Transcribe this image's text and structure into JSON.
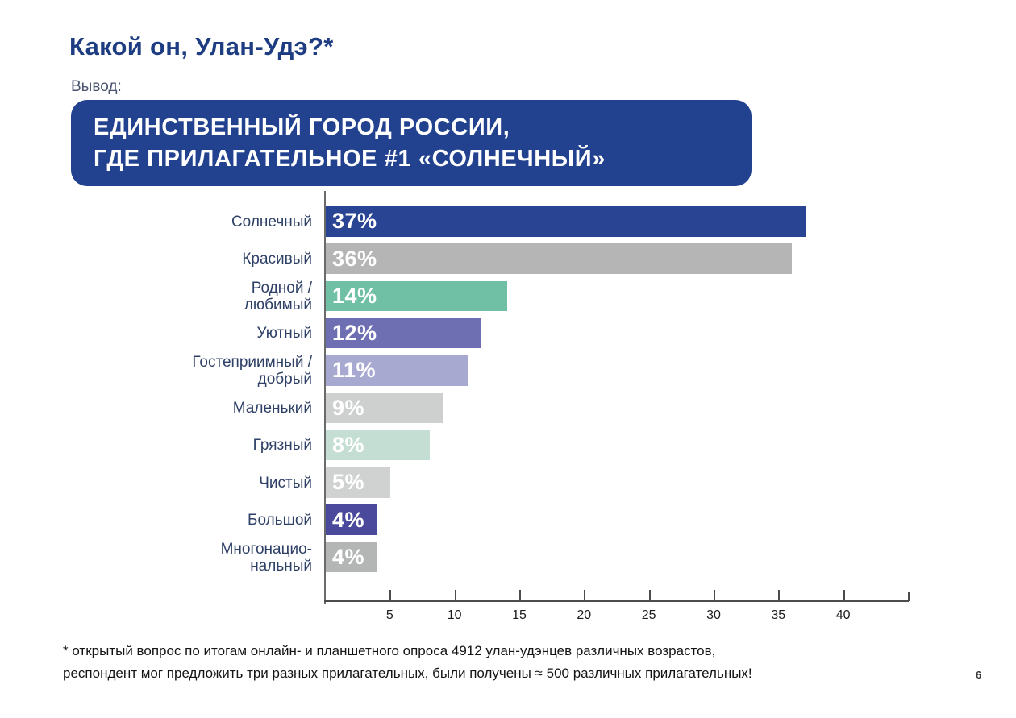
{
  "page": {
    "title": "Какой он, Улан-Удэ?*",
    "conclusion_label": "Вывод:",
    "callout": {
      "line1": "ЕДИНСТВЕННЫЙ ГОРОД РОССИИ,",
      "line2": "ГДЕ ПРИЛАГАТЕЛЬНОЕ #1 «СОЛНЕЧНЫЙ»"
    },
    "footnote": {
      "line1": "* открытый вопрос по итогам онлайн- и планшетного опроса 4912 улан-удэнцев различных возрастов,",
      "line2": "респондент мог предложить три разных прилагательных, были получены ≈ 500 различных прилагательных!"
    },
    "page_number": "6"
  },
  "colors": {
    "title": "#1d3c82",
    "callout_bg": "#22418e",
    "callout_text": "#ffffff",
    "category_label": "#2e4066",
    "axis": "#4c4c4c",
    "tick_label": "#1c1c1c",
    "footnote": "#141414",
    "value_label": "#ffffff"
  },
  "chart_data": {
    "type": "bar",
    "orientation": "horizontal",
    "title": "",
    "xlabel": "",
    "ylabel": "",
    "xlim": [
      0,
      45
    ],
    "xticks": [
      5,
      10,
      15,
      20,
      25,
      30,
      35,
      40
    ],
    "grid": false,
    "legend": false,
    "categories": [
      "Солнечный",
      "Красивый",
      "Родной / любимый",
      "Уютный",
      "Гостеприимный / добрый",
      "Маленький",
      "Грязный",
      "Чистый",
      "Большой",
      "Многонациональный"
    ],
    "values": [
      37,
      36,
      14,
      12,
      11,
      9,
      8,
      5,
      4,
      4
    ],
    "bars": [
      {
        "label_lines": [
          "Солнечный"
        ],
        "value": 37,
        "display": "37%",
        "color": "#2a4494"
      },
      {
        "label_lines": [
          "Красивый"
        ],
        "value": 36,
        "display": "36%",
        "color": "#b4b5b4"
      },
      {
        "label_lines": [
          "Родной /",
          "любимый"
        ],
        "value": 14,
        "display": "14%",
        "color": "#6fc0a5"
      },
      {
        "label_lines": [
          "Уютный"
        ],
        "value": 12,
        "display": "12%",
        "color": "#6e6fb2"
      },
      {
        "label_lines": [
          "Гостеприимный /",
          "добрый"
        ],
        "value": 11,
        "display": "11%",
        "color": "#a7a9d1"
      },
      {
        "label_lines": [
          "Маленький"
        ],
        "value": 9,
        "display": "9%",
        "color": "#cdd0ce"
      },
      {
        "label_lines": [
          "Грязный"
        ],
        "value": 8,
        "display": "8%",
        "color": "#c5ded3"
      },
      {
        "label_lines": [
          "Чистый"
        ],
        "value": 5,
        "display": "5%",
        "color": "#d0d2d1"
      },
      {
        "label_lines": [
          "Большой"
        ],
        "value": 4,
        "display": "4%",
        "color": "#4a499c"
      },
      {
        "label_lines": [
          "Многонацио-",
          "нальный"
        ],
        "value": 4,
        "display": "4%",
        "color": "#b4b6b5"
      }
    ]
  }
}
